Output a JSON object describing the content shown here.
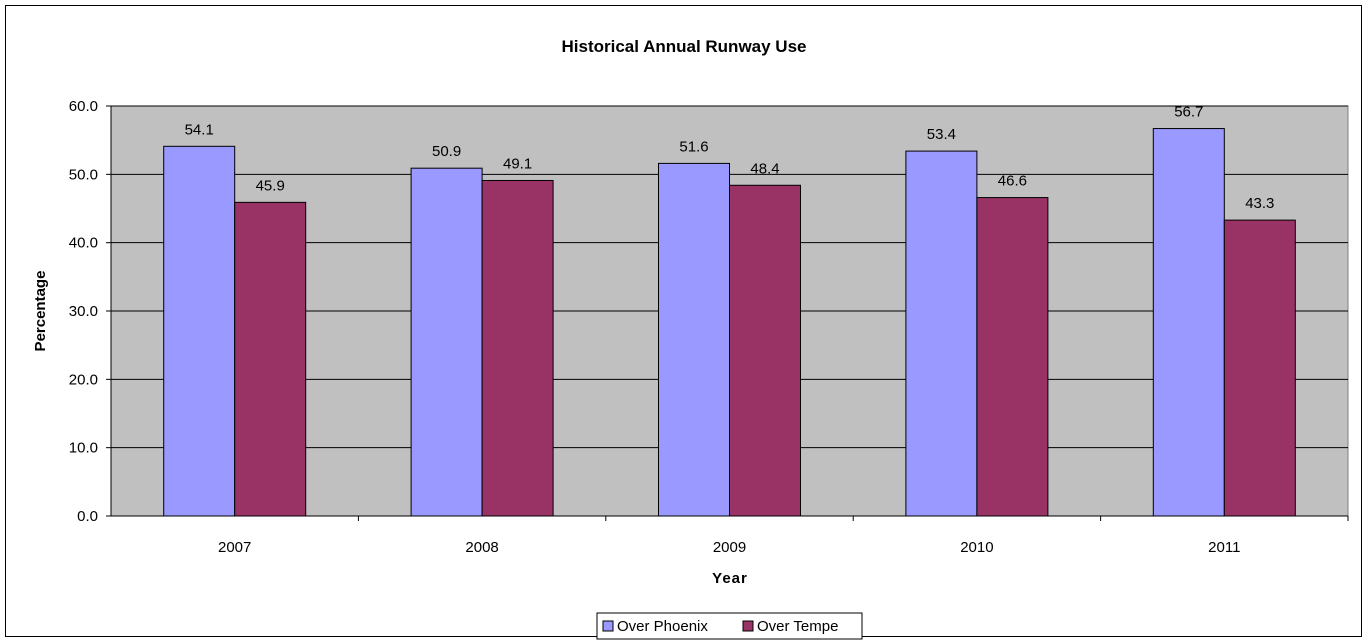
{
  "chart_data": {
    "type": "bar",
    "title": "Historical Annual Runway Use",
    "xlabel": "Year",
    "ylabel": "Percentage",
    "categories": [
      "2007",
      "2008",
      "2009",
      "2010",
      "2011"
    ],
    "series": [
      {
        "name": "Over Phoenix",
        "values": [
          54.1,
          50.9,
          51.6,
          53.4,
          56.7
        ],
        "color": "#9999ff"
      },
      {
        "name": "Over Tempe",
        "values": [
          45.9,
          49.1,
          48.4,
          46.6,
          43.3
        ],
        "color": "#993366"
      }
    ],
    "ylim": [
      0,
      60
    ],
    "yticks": [
      "0.0",
      "10.0",
      "20.0",
      "30.0",
      "40.0",
      "50.0",
      "60.0"
    ],
    "grid": true,
    "plot_background": "#c0c0c0",
    "legend_position": "bottom"
  }
}
